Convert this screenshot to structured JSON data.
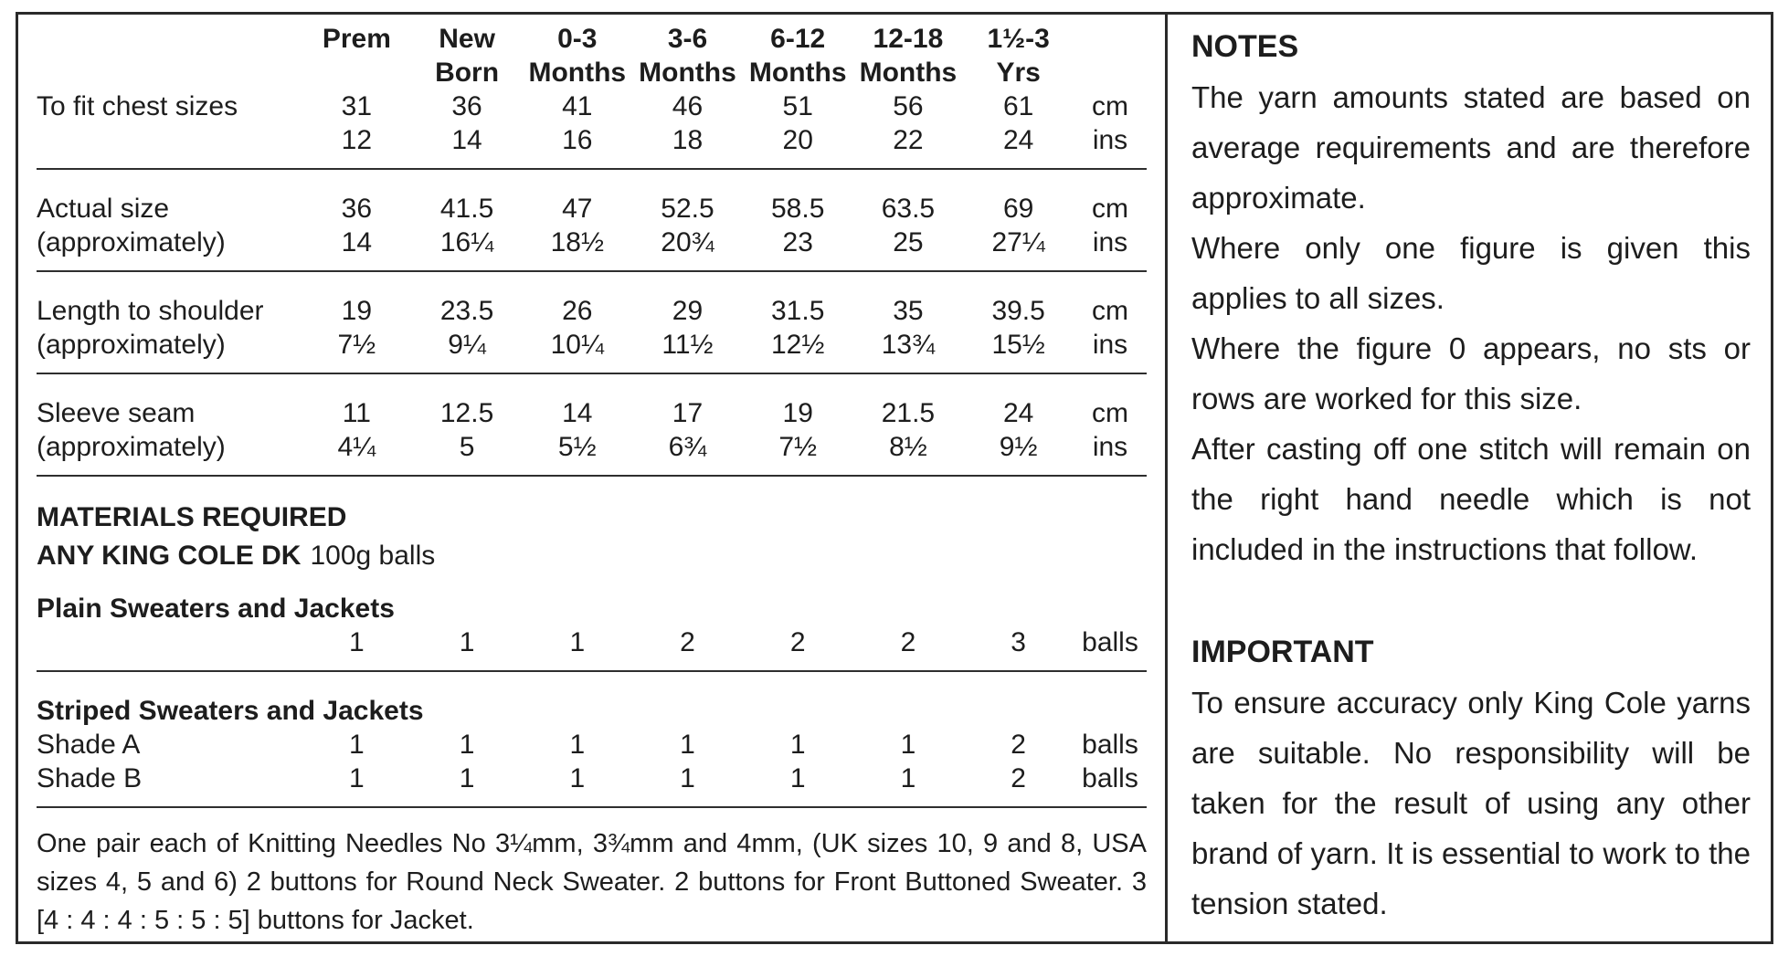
{
  "table": {
    "headers": [
      [
        "Prem",
        ""
      ],
      [
        "New",
        "Born"
      ],
      [
        "0-3",
        "Months"
      ],
      [
        "3-6",
        "Months"
      ],
      [
        "6-12",
        "Months"
      ],
      [
        "12-18",
        "Months"
      ],
      [
        "1½-3",
        "Yrs"
      ]
    ],
    "rows": [
      {
        "label": "To fit chest sizes",
        "label2": "",
        "cm": [
          "31",
          "36",
          "41",
          "46",
          "51",
          "56",
          "61"
        ],
        "ins": [
          "12",
          "14",
          "16",
          "18",
          "20",
          "22",
          "24"
        ],
        "cm_unit": "cm",
        "ins_unit": "ins"
      },
      {
        "label": "Actual size",
        "label2": "(approximately)",
        "cm": [
          "36",
          "41.5",
          "47",
          "52.5",
          "58.5",
          "63.5",
          "69"
        ],
        "ins": [
          "14",
          "16¼",
          "18½",
          "20¾",
          "23",
          "25",
          "27¼"
        ],
        "cm_unit": "cm",
        "ins_unit": "ins"
      },
      {
        "label": "Length to shoulder",
        "label2": "(approximately)",
        "cm": [
          "19",
          "23.5",
          "26",
          "29",
          "31.5",
          "35",
          "39.5"
        ],
        "ins": [
          "7½",
          "9¼",
          "10¼",
          "11½",
          "12½",
          "13¾",
          "15½"
        ],
        "cm_unit": "cm",
        "ins_unit": "ins"
      },
      {
        "label": "Sleeve seam",
        "label2": "(approximately)",
        "cm": [
          "11",
          "12.5",
          "14",
          "17",
          "19",
          "21.5",
          "24"
        ],
        "ins": [
          "4¼",
          "5",
          "5½",
          "6¾",
          "7½",
          "8½",
          "9½"
        ],
        "cm_unit": "cm",
        "ins_unit": "ins"
      }
    ]
  },
  "materials": {
    "title1": "MATERIALS REQUIRED",
    "title2_bold": "ANY KING COLE DK",
    "title2_rest": "100g balls",
    "plain": {
      "title": "Plain Sweaters and Jackets",
      "values": [
        "1",
        "1",
        "1",
        "2",
        "2",
        "2",
        "3"
      ],
      "unit": "balls"
    },
    "striped": {
      "title": "Striped Sweaters and Jackets",
      "rows": [
        {
          "label": "Shade A",
          "values": [
            "1",
            "1",
            "1",
            "1",
            "1",
            "1",
            "2"
          ],
          "unit": "balls"
        },
        {
          "label": "Shade B",
          "values": [
            "1",
            "1",
            "1",
            "1",
            "1",
            "1",
            "2"
          ],
          "unit": "balls"
        }
      ]
    }
  },
  "needles_text": "One pair each of Knitting Needles No 3¼mm, 3¾mm and 4mm, (UK sizes 10, 9 and 8, USA sizes 4, 5 and 6) 2 buttons for Round Neck Sweater. 2 buttons for Front Buttoned Sweater. 3 [4 : 4 : 4 : 5 : 5 : 5] buttons for Jacket.",
  "notes": {
    "title": "NOTES",
    "paragraphs": [
      "The yarn amounts stated are based on average requirements and are therefore approximate.",
      "Where only one figure is given this applies to all sizes.",
      "Where the figure 0 appears, no sts or rows are worked for this size.",
      "After casting off one stitch will remain on the right hand needle which is not included in the instructions that follow."
    ]
  },
  "important": {
    "title": "IMPORTANT",
    "paragraphs": [
      "To ensure accuracy only King Cole yarns are suitable. No responsibility will be taken for the result of using any other brand of yarn. It is essential to work to the tension stated."
    ]
  }
}
